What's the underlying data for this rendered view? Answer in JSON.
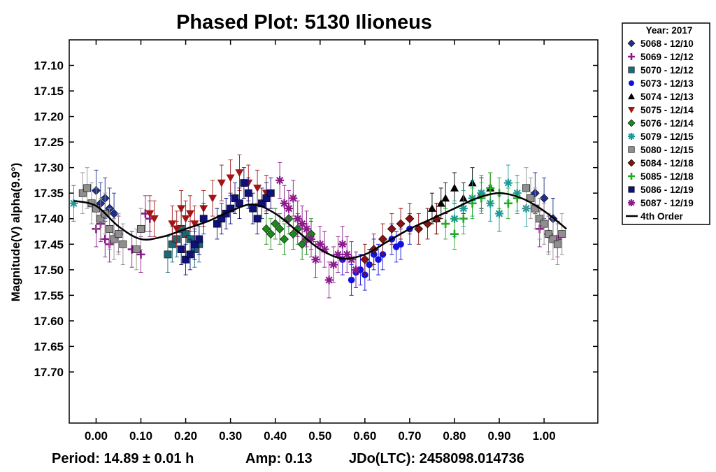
{
  "chart_data": {
    "type": "scatter",
    "title": "Phased Plot: 5130 Ilioneus",
    "xlabel": "",
    "ylabel": "Magnitude(V) alpha(9.9°)",
    "xlim": [
      -0.06,
      1.12
    ],
    "ylim": [
      17.8,
      17.05
    ],
    "y_inverted": true,
    "x_ticks": [
      0.0,
      0.1,
      0.2,
      0.3,
      0.4,
      0.5,
      0.6,
      0.7,
      0.8,
      0.9,
      1.0
    ],
    "x_tick_labels": [
      "0.00",
      "0.10",
      "0.20",
      "0.30",
      "0.40",
      "0.50",
      "0.60",
      "0.70",
      "0.80",
      "0.90",
      "1.00"
    ],
    "y_ticks": [
      17.1,
      17.15,
      17.2,
      17.25,
      17.3,
      17.35,
      17.4,
      17.45,
      17.5,
      17.55,
      17.6,
      17.65,
      17.7
    ],
    "y_tick_labels": [
      "17.10",
      "17.15",
      "17.20",
      "17.25",
      "17.30",
      "17.35",
      "17.40",
      "17.45",
      "17.50",
      "17.55",
      "17.60",
      "17.65",
      "17.70"
    ],
    "legend_position": "outside-right",
    "legend_title": "Year: 2017",
    "footer": {
      "period": "Period: 14.89 ± 0.01 h",
      "amp": "Amp: 0.13",
      "jdo": "JDo(LTC): 2458098.014736"
    },
    "fit": {
      "name": "4th Order",
      "color": "#000000",
      "x": [
        -0.05,
        0,
        0.05,
        0.1,
        0.15,
        0.2,
        0.25,
        0.3,
        0.35,
        0.4,
        0.45,
        0.5,
        0.55,
        0.6,
        0.65,
        0.7,
        0.75,
        0.8,
        0.85,
        0.9,
        0.95,
        1.0,
        1.05
      ],
      "y": [
        17.365,
        17.375,
        17.415,
        17.44,
        17.435,
        17.42,
        17.405,
        17.385,
        17.372,
        17.39,
        17.425,
        17.46,
        17.478,
        17.47,
        17.445,
        17.42,
        17.4,
        17.38,
        17.36,
        17.35,
        17.36,
        17.385,
        17.42
      ]
    },
    "series": [
      {
        "name": "5068 - 12/10",
        "marker": "diamond",
        "color": "#1f2f8f",
        "x": [
          0.0,
          0.01,
          0.02,
          0.03,
          0.04,
          0.98,
          1.0,
          1.02
        ],
        "y": [
          17.345,
          17.37,
          17.36,
          17.38,
          17.39,
          17.35,
          17.36,
          17.4
        ],
        "err": 0.04
      },
      {
        "name": "5069 - 12/12",
        "marker": "plus",
        "color": "#8b1a8b",
        "x": [
          0.0,
          0.01,
          0.02,
          0.03,
          0.05,
          0.08,
          0.1,
          0.11,
          0.12,
          0.99,
          1.01,
          1.03
        ],
        "y": [
          17.42,
          17.41,
          17.44,
          17.45,
          17.43,
          17.46,
          17.47,
          17.39,
          17.4,
          17.42,
          17.43,
          17.44
        ],
        "err": 0.035
      },
      {
        "name": "5070 - 12/12",
        "marker": "square",
        "color": "#1a6b78",
        "x": [
          0.16,
          0.17,
          0.18,
          0.19,
          0.2,
          0.21,
          0.22,
          0.23
        ],
        "y": [
          17.47,
          17.45,
          17.44,
          17.42,
          17.43,
          17.44,
          17.46,
          17.45
        ],
        "err": 0.035
      },
      {
        "name": "5073 - 12/13",
        "marker": "circle",
        "color": "#1010e0",
        "x": [
          0.55,
          0.57,
          0.58,
          0.59,
          0.6,
          0.61,
          0.62,
          0.63,
          0.64,
          0.66,
          0.67,
          0.68,
          0.7
        ],
        "y": [
          17.48,
          17.52,
          17.505,
          17.5,
          17.51,
          17.49,
          17.47,
          17.48,
          17.47,
          17.44,
          17.455,
          17.45,
          17.42
        ],
        "err": 0.03
      },
      {
        "name": "5074 - 12/13",
        "marker": "triangle-up",
        "color": "#000000",
        "x": [
          0.75,
          0.76,
          0.77,
          0.78,
          0.8,
          0.82,
          0.84,
          0.86,
          0.88
        ],
        "y": [
          17.38,
          17.4,
          17.37,
          17.36,
          17.34,
          17.36,
          17.33,
          17.35,
          17.34
        ],
        "err": 0.03
      },
      {
        "name": "5075 - 12/14",
        "marker": "triangle-down",
        "color": "#a31515",
        "x": [
          0.12,
          0.13,
          0.17,
          0.18,
          0.19,
          0.2,
          0.21,
          0.22,
          0.24,
          0.26,
          0.28,
          0.3,
          0.32,
          0.34,
          0.36,
          0.38
        ],
        "y": [
          17.39,
          17.4,
          17.41,
          17.42,
          17.38,
          17.4,
          17.39,
          17.41,
          17.38,
          17.36,
          17.33,
          17.32,
          17.31,
          17.33,
          17.34,
          17.35
        ],
        "err": 0.035
      },
      {
        "name": "5076 - 12/14",
        "marker": "diamond",
        "color": "#1a8a1a",
        "x": [
          0.38,
          0.39,
          0.4,
          0.41,
          0.42,
          0.43,
          0.44,
          0.45,
          0.46,
          0.47,
          0.48
        ],
        "y": [
          17.42,
          17.43,
          17.41,
          17.42,
          17.44,
          17.4,
          17.43,
          17.42,
          17.45,
          17.44,
          17.43
        ],
        "err": 0.03
      },
      {
        "name": "5079 - 12/15",
        "marker": "asterisk",
        "color": "#1a9a9a",
        "x": [
          -0.05,
          0.8,
          0.82,
          0.84,
          0.86,
          0.88,
          0.9,
          0.92,
          0.94,
          0.96
        ],
        "y": [
          17.37,
          17.4,
          17.38,
          17.36,
          17.35,
          17.37,
          17.39,
          17.33,
          17.35,
          17.38
        ],
        "err": 0.035
      },
      {
        "name": "5080 - 12/15",
        "marker": "square",
        "color": "#8f8f8f",
        "x": [
          -0.03,
          -0.02,
          -0.01,
          0.0,
          0.01,
          0.02,
          0.03,
          0.04,
          0.05,
          0.06,
          0.09,
          0.1,
          0.96,
          0.97,
          0.98,
          0.99,
          1.0,
          1.01,
          1.02,
          1.03,
          1.04
        ],
        "y": [
          17.35,
          17.34,
          17.37,
          17.38,
          17.4,
          17.39,
          17.42,
          17.44,
          17.43,
          17.45,
          17.46,
          17.42,
          17.34,
          17.36,
          17.38,
          17.4,
          17.41,
          17.43,
          17.44,
          17.45,
          17.43
        ],
        "err": 0.04
      },
      {
        "name": "5084 - 12/18",
        "marker": "diamond",
        "color": "#8b1010",
        "x": [
          0.6,
          0.62,
          0.64,
          0.66,
          0.68,
          0.7,
          0.72,
          0.74,
          0.76
        ],
        "y": [
          17.48,
          17.46,
          17.44,
          17.42,
          17.41,
          17.4,
          17.42,
          17.41,
          17.4
        ],
        "err": 0.03
      },
      {
        "name": "5085 - 12/18",
        "marker": "plus",
        "color": "#22aa22",
        "x": [
          0.78,
          0.8,
          0.82,
          0.84,
          0.86,
          0.88,
          0.9,
          0.92,
          0.94
        ],
        "y": [
          17.41,
          17.43,
          17.4,
          17.37,
          17.36,
          17.34,
          17.35,
          17.37,
          17.36
        ],
        "err": 0.03
      },
      {
        "name": "5086 - 12/19",
        "marker": "square",
        "color": "#10107a",
        "x": [
          0.19,
          0.2,
          0.21,
          0.22,
          0.23,
          0.24,
          0.27,
          0.28,
          0.29,
          0.3,
          0.31,
          0.32,
          0.33,
          0.34,
          0.35,
          0.36,
          0.37,
          0.38,
          0.39
        ],
        "y": [
          17.46,
          17.48,
          17.47,
          17.45,
          17.44,
          17.4,
          17.41,
          17.4,
          17.39,
          17.38,
          17.36,
          17.37,
          17.33,
          17.35,
          17.38,
          17.4,
          17.37,
          17.36,
          17.35
        ],
        "err": 0.03
      },
      {
        "name": "5087 - 12/19",
        "marker": "asterisk",
        "color": "#8b1a8b",
        "x": [
          0.41,
          0.42,
          0.43,
          0.44,
          0.45,
          0.46,
          0.47,
          0.48,
          0.49,
          0.5,
          0.51,
          0.52,
          0.53,
          0.54,
          0.55,
          0.56,
          0.57,
          0.58
        ],
        "y": [
          17.325,
          17.37,
          17.38,
          17.36,
          17.4,
          17.41,
          17.42,
          17.44,
          17.48,
          17.45,
          17.46,
          17.52,
          17.49,
          17.47,
          17.45,
          17.47,
          17.48,
          17.5
        ],
        "err": 0.035
      }
    ]
  }
}
